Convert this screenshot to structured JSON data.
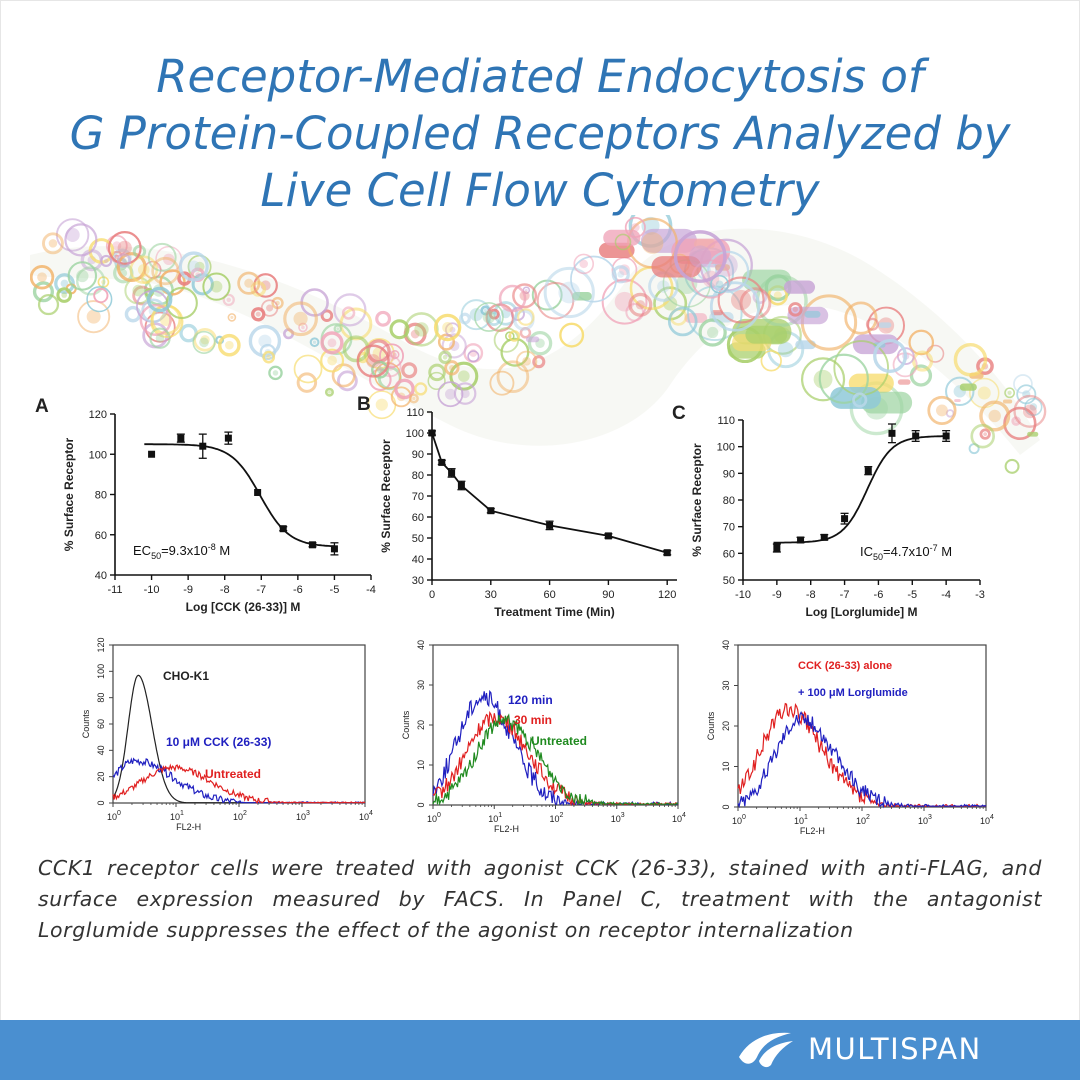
{
  "page": {
    "title_lines": [
      "Receptor-Mediated Endocytosis of",
      "G Protein-Coupled Receptors Analyzed by",
      "Live Cell Flow Cytometry"
    ],
    "caption": "CCK1 receptor cells were treated with agonist CCK (26-33), stained with anti-FLAG, and surface expression measured by FACS. In Panel C, treatment with the antagonist Lorglumide suppresses the effect of the agonist on receptor internalization",
    "brand": "MULTISPAN",
    "colors": {
      "title": "#2f75b5",
      "footer": "#4a8fd0",
      "text": "#333333"
    },
    "icons": [
      "multispan-logo-icon",
      "decorative-cell-pattern"
    ]
  },
  "chart_data": [
    {
      "type": "scatter",
      "panel_label": "A",
      "xlabel": "Log [CCK (26-33)] M",
      "ylabel": "% Surface Receptor",
      "xlim": [
        -11,
        -4
      ],
      "ylim": [
        40,
        120
      ],
      "xticks": [
        -11,
        -10,
        -9,
        -8,
        -7,
        -6,
        -5,
        -4
      ],
      "yticks": [
        40,
        60,
        80,
        100,
        120
      ],
      "annotation": {
        "text": "EC",
        "sub": "50",
        "rest": "=9.3x10",
        "sup": "-8",
        "unit": " M"
      },
      "points": [
        {
          "x": -10,
          "y": 100,
          "err": 0
        },
        {
          "x": -9.2,
          "y": 108,
          "err": 2
        },
        {
          "x": -8.6,
          "y": 104,
          "err": 6
        },
        {
          "x": -7.9,
          "y": 108,
          "err": 3
        },
        {
          "x": -7.1,
          "y": 81,
          "err": 0
        },
        {
          "x": -6.4,
          "y": 63,
          "err": 1
        },
        {
          "x": -5.6,
          "y": 55,
          "err": 1
        },
        {
          "x": -5.0,
          "y": 53,
          "err": 3
        }
      ],
      "fit": {
        "top": 105,
        "bottom": 54,
        "logEC50": -7.03,
        "hill": -1.1,
        "x_from": -10.2,
        "x_to": -5.0
      }
    },
    {
      "type": "line",
      "panel_label": "B",
      "xlabel": "Treatment Time (Min)",
      "ylabel": "% Surface Receptor",
      "xlim": [
        0,
        125
      ],
      "ylim": [
        30,
        110
      ],
      "xticks": [
        0,
        30,
        60,
        90,
        120
      ],
      "yticks": [
        30,
        40,
        50,
        60,
        70,
        80,
        90,
        100,
        110
      ],
      "points": [
        {
          "x": 0,
          "y": 100,
          "err": 1
        },
        {
          "x": 5,
          "y": 86,
          "err": 1
        },
        {
          "x": 10,
          "y": 81,
          "err": 2
        },
        {
          "x": 15,
          "y": 75,
          "err": 2
        },
        {
          "x": 30,
          "y": 63,
          "err": 1
        },
        {
          "x": 60,
          "y": 56,
          "err": 2
        },
        {
          "x": 90,
          "y": 51,
          "err": 1
        },
        {
          "x": 120,
          "y": 43,
          "err": 1
        }
      ]
    },
    {
      "type": "scatter",
      "panel_label": "C",
      "xlabel": "Log [Lorglumide] M",
      "ylabel": "% Surface Receptor",
      "xlim": [
        -10,
        -3
      ],
      "ylim": [
        50,
        110
      ],
      "xticks": [
        -10,
        -9,
        -8,
        -7,
        -6,
        -5,
        -4,
        -3
      ],
      "yticks": [
        50,
        60,
        70,
        80,
        90,
        100,
        110
      ],
      "annotation": {
        "text": "IC",
        "sub": "50",
        "rest": "=4.7x10",
        "sup": "-7",
        "unit": " M"
      },
      "points": [
        {
          "x": -9.0,
          "y": 62,
          "err": 1.5
        },
        {
          "x": -8.3,
          "y": 65,
          "err": 1
        },
        {
          "x": -7.6,
          "y": 66,
          "err": 1
        },
        {
          "x": -7.0,
          "y": 73,
          "err": 2
        },
        {
          "x": -6.3,
          "y": 91,
          "err": 1.5
        },
        {
          "x": -5.6,
          "y": 105,
          "err": 3.5
        },
        {
          "x": -4.9,
          "y": 104,
          "err": 2
        },
        {
          "x": -4.0,
          "y": 104,
          "err": 2
        }
      ],
      "fit": {
        "top": 104,
        "bottom": 64,
        "logEC50": -6.33,
        "hill": 1.2,
        "x_from": -9.1,
        "x_to": -4.0
      }
    },
    {
      "type": "histogram",
      "xlabel": "FL2-H",
      "ylabel": "Counts",
      "xscale": "log",
      "xlim": [
        1,
        10000
      ],
      "ylim": [
        0,
        120
      ],
      "xticks": [
        "10^0",
        "10^1",
        "10^2",
        "10^3",
        "10^4"
      ],
      "yticks": [
        0,
        20,
        40,
        60,
        80,
        100,
        120
      ],
      "series": [
        {
          "name": "CHO-K1",
          "color": "#222222",
          "peak_log": 0.4,
          "peak": 97,
          "width_l": 0.16,
          "width_r": 0.22
        },
        {
          "name": "10 μM CCK (26-33)",
          "color": "#2020c0",
          "peak_log": 0.35,
          "peak": 32,
          "width_l": 0.35,
          "width_r": 0.6
        },
        {
          "name": "Untreated",
          "color": "#e02020",
          "peak_log": 0.95,
          "peak": 27,
          "width_l": 0.5,
          "width_r": 0.6
        }
      ]
    },
    {
      "type": "histogram",
      "xlabel": "FL2-H",
      "ylabel": "Counts",
      "xscale": "log",
      "xlim": [
        1,
        10000
      ],
      "ylim": [
        0,
        40
      ],
      "xticks": [
        "10^0",
        "10^1",
        "10^2",
        "10^3",
        "10^4"
      ],
      "yticks": [
        0,
        10,
        20,
        30,
        40
      ],
      "series": [
        {
          "name": "120 min",
          "color": "#2020c0",
          "peak_log": 0.8,
          "peak": 27,
          "width_l": 0.4,
          "width_r": 0.5
        },
        {
          "name": "30 min",
          "color": "#e02020",
          "peak_log": 1.0,
          "peak": 22,
          "width_l": 0.45,
          "width_r": 0.55
        },
        {
          "name": "Untreated",
          "color": "#1f8a1f",
          "peak_log": 1.15,
          "peak": 21,
          "width_l": 0.45,
          "width_r": 0.55
        }
      ]
    },
    {
      "type": "histogram",
      "xlabel": "FL2-H",
      "ylabel": "Counts",
      "xscale": "log",
      "xlim": [
        1,
        10000
      ],
      "ylim": [
        0,
        40
      ],
      "xticks": [
        "10^0",
        "10^1",
        "10^2",
        "10^3",
        "10^4"
      ],
      "yticks": [
        0,
        10,
        20,
        30,
        40
      ],
      "series": [
        {
          "name": "CCK (26-33) alone",
          "color": "#e02020",
          "peak_log": 0.8,
          "peak": 24,
          "width_l": 0.42,
          "width_r": 0.55
        },
        {
          "name": "+ 100 μM Lorglumide",
          "color": "#2020c0",
          "peak_log": 1.0,
          "peak": 22,
          "width_l": 0.4,
          "width_r": 0.55
        }
      ]
    }
  ]
}
